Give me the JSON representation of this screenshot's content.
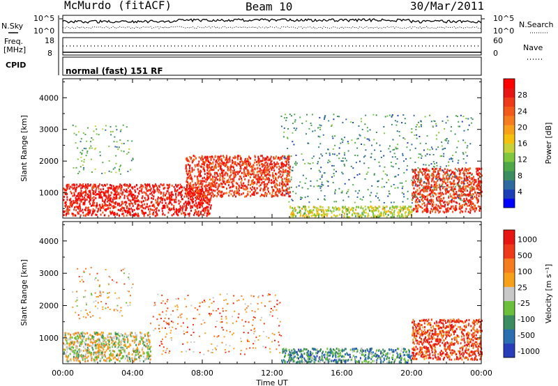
{
  "header": {
    "station": "McMurdo (fitACF)",
    "beam": "Beam 10",
    "date": "30/Mar/2011"
  },
  "top_panels": {
    "nsky_label": "N.Sky",
    "nsky_ticks": [
      "10^5",
      "10^0"
    ],
    "nsearch_label": "N.Search",
    "nsearch_ticks": [
      "10^5",
      "10^0"
    ],
    "freq_label_1": "Freq.",
    "freq_label_2": "[MHz]",
    "freq_ticks": [
      "18",
      "8"
    ],
    "nave_label": "Nave",
    "nave_ticks": [
      "60",
      "0"
    ],
    "cpid_label": "CPID",
    "cpid_text": "normal (fast) 151 RF"
  },
  "chart_data": [
    {
      "type": "heatmap",
      "title": "",
      "xlabel": "",
      "ylabel": "Slant Range [km]",
      "x_ticks": [
        "00:00",
        "04:00",
        "08:00",
        "12:00",
        "16:00",
        "20:00",
        "00:00"
      ],
      "y_ticks": [
        1000,
        2000,
        3000,
        4000
      ],
      "ylim": [
        200,
        4600
      ],
      "colorbar": {
        "label": "Power [dB]",
        "ticks": [
          4,
          8,
          12,
          16,
          20,
          24,
          28
        ],
        "colors": [
          "#0000ff",
          "#1c3fb8",
          "#2e6aa0",
          "#3c8c62",
          "#4ea84a",
          "#7fc73f",
          "#c7d23a",
          "#f4c20d",
          "#f7a01a",
          "#f57d1f",
          "#f25a1b",
          "#ee3a1a",
          "#e81515",
          "#ff0000"
        ]
      },
      "regions": [
        {
          "x0": 0.0,
          "x1": 8.5,
          "y0": 300,
          "y1": 1300,
          "level": 12
        },
        {
          "x0": 7.0,
          "x1": 13.0,
          "y0": 900,
          "y1": 2200,
          "level": 11
        },
        {
          "x0": 13.0,
          "x1": 20.0,
          "y0": 250,
          "y1": 600,
          "level": 6
        },
        {
          "x0": 20.0,
          "x1": 24.0,
          "y0": 400,
          "y1": 1800,
          "level": 11
        },
        {
          "x0": 0.5,
          "x1": 4.0,
          "y0": 1600,
          "y1": 3200,
          "level": 4
        },
        {
          "x0": 12.5,
          "x1": 23.5,
          "y0": 700,
          "y1": 3500,
          "level": 3
        }
      ]
    },
    {
      "type": "heatmap",
      "title": "",
      "xlabel": "Time UT",
      "ylabel": "Slant Range [km]",
      "x_ticks": [
        "00:00",
        "04:00",
        "08:00",
        "12:00",
        "16:00",
        "20:00",
        "00:00"
      ],
      "y_ticks": [
        1000,
        2000,
        3000,
        4000
      ],
      "ylim": [
        200,
        4600
      ],
      "colorbar": {
        "label": "Velocity [m s^-1]",
        "ticks": [
          "1000",
          "500",
          "100",
          "25",
          "-25",
          "-100",
          "-500",
          "-1000"
        ],
        "colors": [
          "#2a3db8",
          "#2c6fb0",
          "#3c8c62",
          "#6cbf3c",
          "#c8c8c8",
          "#f7a01a",
          "#f57d1f",
          "#ee3a1a",
          "#e81515"
        ]
      },
      "regions": [
        {
          "x0": 0.0,
          "x1": 5.0,
          "y0": 300,
          "y1": 1200,
          "level": 4
        },
        {
          "x0": 5.0,
          "x1": 12.5,
          "y0": 500,
          "y1": 2400,
          "level": 6
        },
        {
          "x0": 12.5,
          "x1": 20.0,
          "y0": 250,
          "y1": 700,
          "level": 2
        },
        {
          "x0": 20.0,
          "x1": 24.0,
          "y0": 350,
          "y1": 1600,
          "level": 7
        },
        {
          "x0": 0.5,
          "x1": 4.0,
          "y0": 1600,
          "y1": 3200,
          "level": 5
        }
      ]
    }
  ]
}
